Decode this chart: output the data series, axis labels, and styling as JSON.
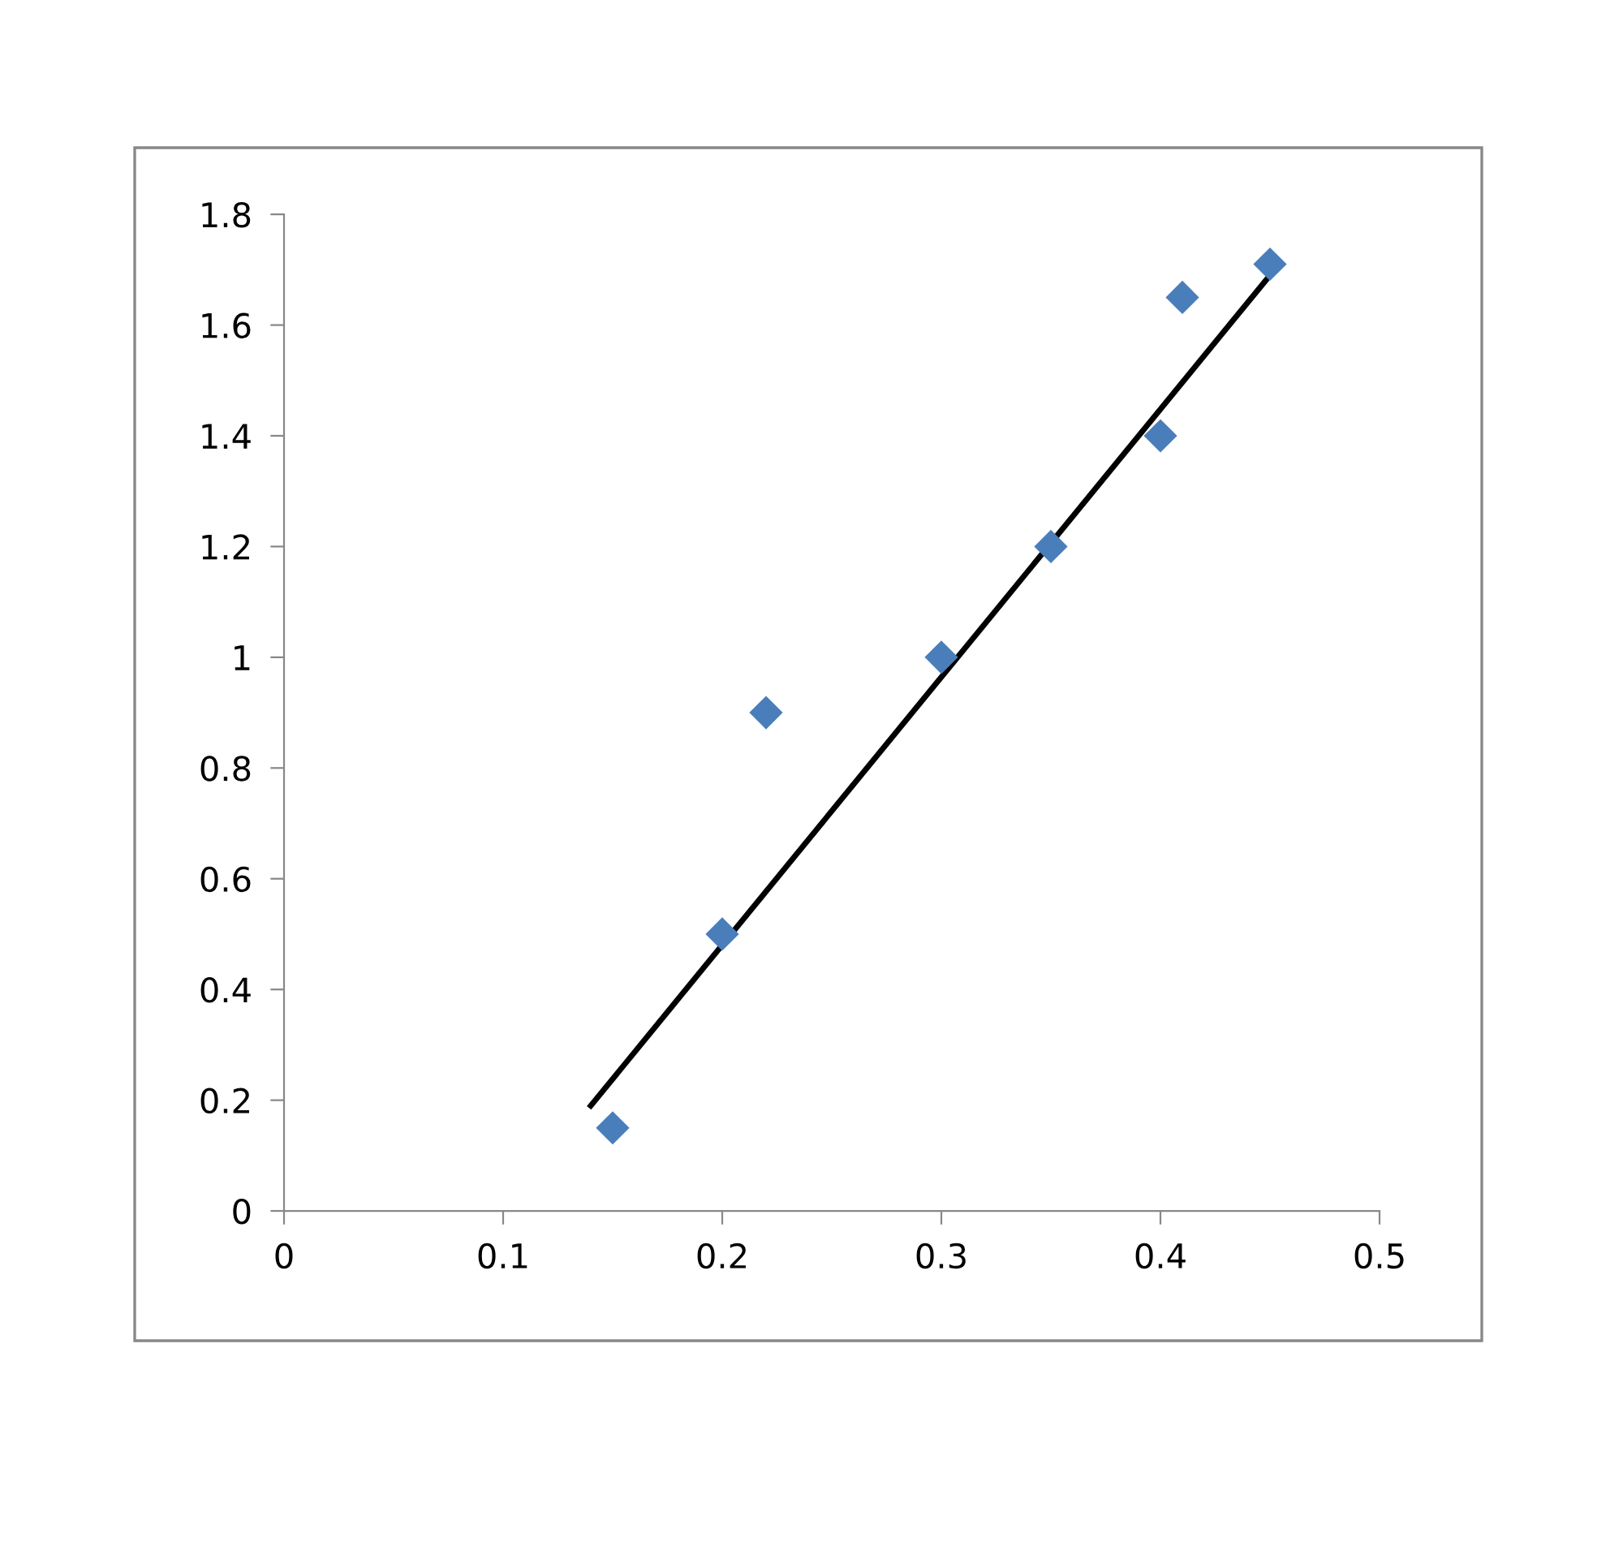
{
  "chart_data": {
    "type": "scatter",
    "grid": false,
    "legend": false,
    "xlim": [
      0,
      0.5
    ],
    "xticks": [
      0,
      0.1,
      0.2,
      0.3,
      0.4,
      0.5
    ],
    "ylim": [
      0,
      1.8
    ],
    "yticks": [
      0,
      0.2,
      0.4,
      0.6,
      0.8,
      1,
      1.2,
      1.4,
      1.6,
      1.8
    ],
    "series": [
      {
        "marker": "diamond",
        "color": "#4a7ebb",
        "x": [
          0.15,
          0.2,
          0.22,
          0.3,
          0.35,
          0.4,
          0.41,
          0.45
        ],
        "values": [
          0.15,
          0.5,
          0.9,
          1.0,
          1.2,
          1.4,
          1.65,
          1.71
        ]
      },
      {
        "type": "line",
        "marker": "none",
        "color": "#000000",
        "line_style": "solid",
        "x": [
          0.14,
          0.45
        ],
        "values": [
          0.19,
          1.69
        ]
      }
    ]
  }
}
